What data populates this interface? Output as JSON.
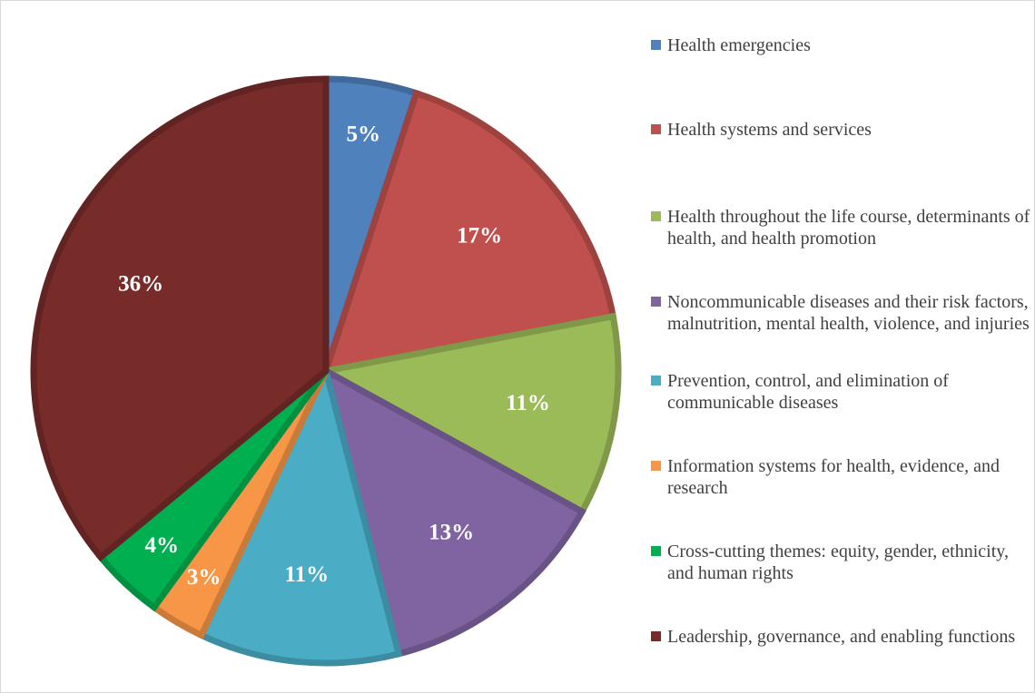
{
  "chart_data": {
    "type": "pie",
    "title": "",
    "start_angle_deg": 0,
    "direction": "clockwise",
    "legend_position": "right",
    "labels": [
      "Health emergencies",
      "Health systems and services",
      "Health throughout the life course, determinants of health, and health promotion",
      "Noncommunicable diseases and their risk factors, malnutrition, mental health, violence, and injuries",
      "Prevention, control, and elimination of communicable diseases",
      "Information systems for health, evidence, and research",
      "Cross-cutting themes: equity, gender, ethnicity, and human rights",
      "Leadership, governance, and enabling functions"
    ],
    "values": [
      5,
      17,
      11,
      13,
      11,
      3,
      4,
      36
    ],
    "data_labels": [
      "5%",
      "17%",
      "11%",
      "13%",
      "11%",
      "3%",
      "4%",
      "36%"
    ],
    "colors": [
      "#4F81BD",
      "#C0504D",
      "#9BBB59",
      "#8064A2",
      "#4BACC6",
      "#F79646",
      "#00B050",
      "#772C2A"
    ]
  }
}
